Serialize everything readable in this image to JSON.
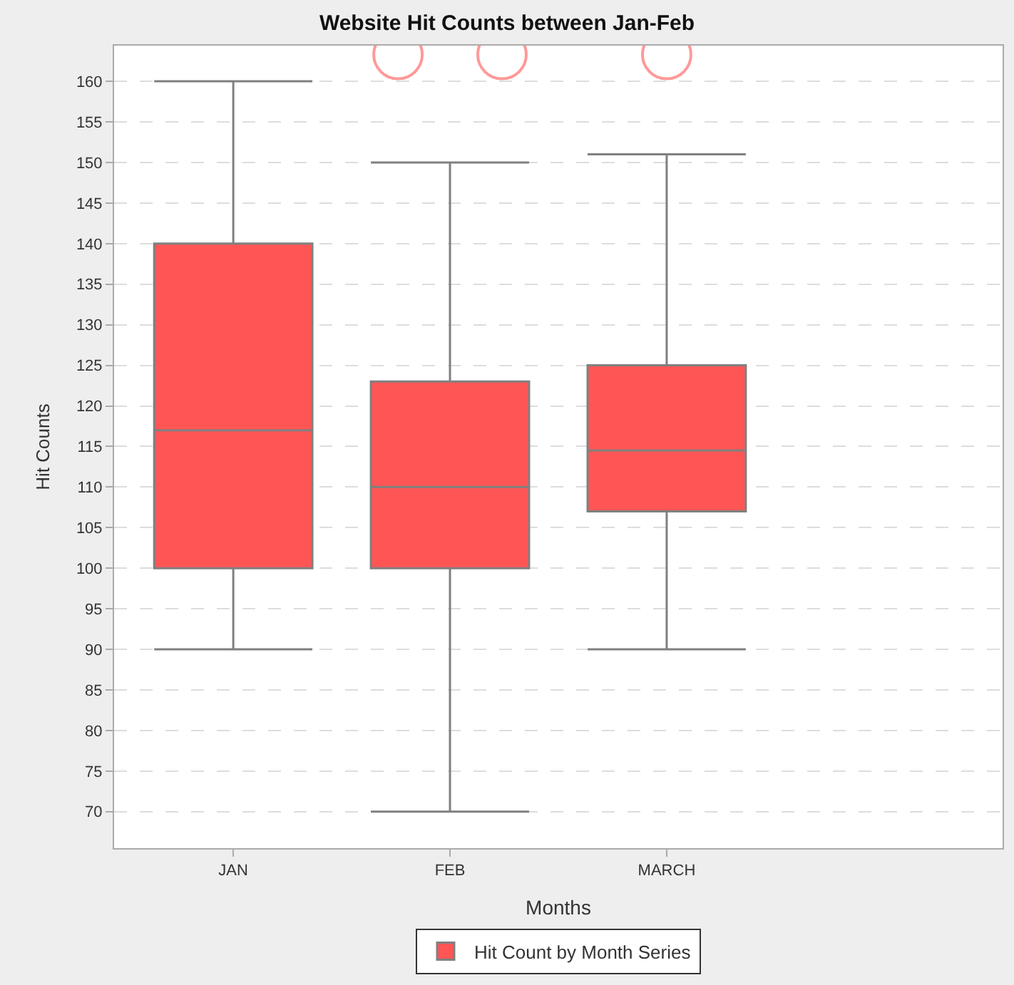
{
  "chart_data": {
    "type": "box",
    "title": "Website Hit Counts between Jan-Feb",
    "xlabel": "Months",
    "ylabel": "Hit Counts",
    "categories": [
      "JAN",
      "FEB",
      "MARCH",
      null
    ],
    "series": [
      {
        "name": "Hit Count by Month Series",
        "color": "#ff5555",
        "boxes": [
          {
            "low": 90,
            "q1": 100,
            "median": 117,
            "q3": 140,
            "high": 160
          },
          {
            "low": 70,
            "q1": 100,
            "median": 110,
            "q3": 123,
            "high": 150,
            "outliers": [
              163.3,
              163.3
            ]
          },
          {
            "low": 90,
            "q1": 107,
            "median": 114.5,
            "q3": 125,
            "high": 151,
            "outliers": [
              163.3
            ]
          },
          null
        ]
      }
    ],
    "ylim": [
      65.5,
      164.4
    ],
    "yticks": [
      70,
      75,
      80,
      85,
      90,
      95,
      100,
      105,
      110,
      115,
      120,
      125,
      130,
      135,
      140,
      145,
      150,
      155,
      160
    ],
    "grid": "y",
    "legend": "bottom",
    "marker": "circle"
  }
}
